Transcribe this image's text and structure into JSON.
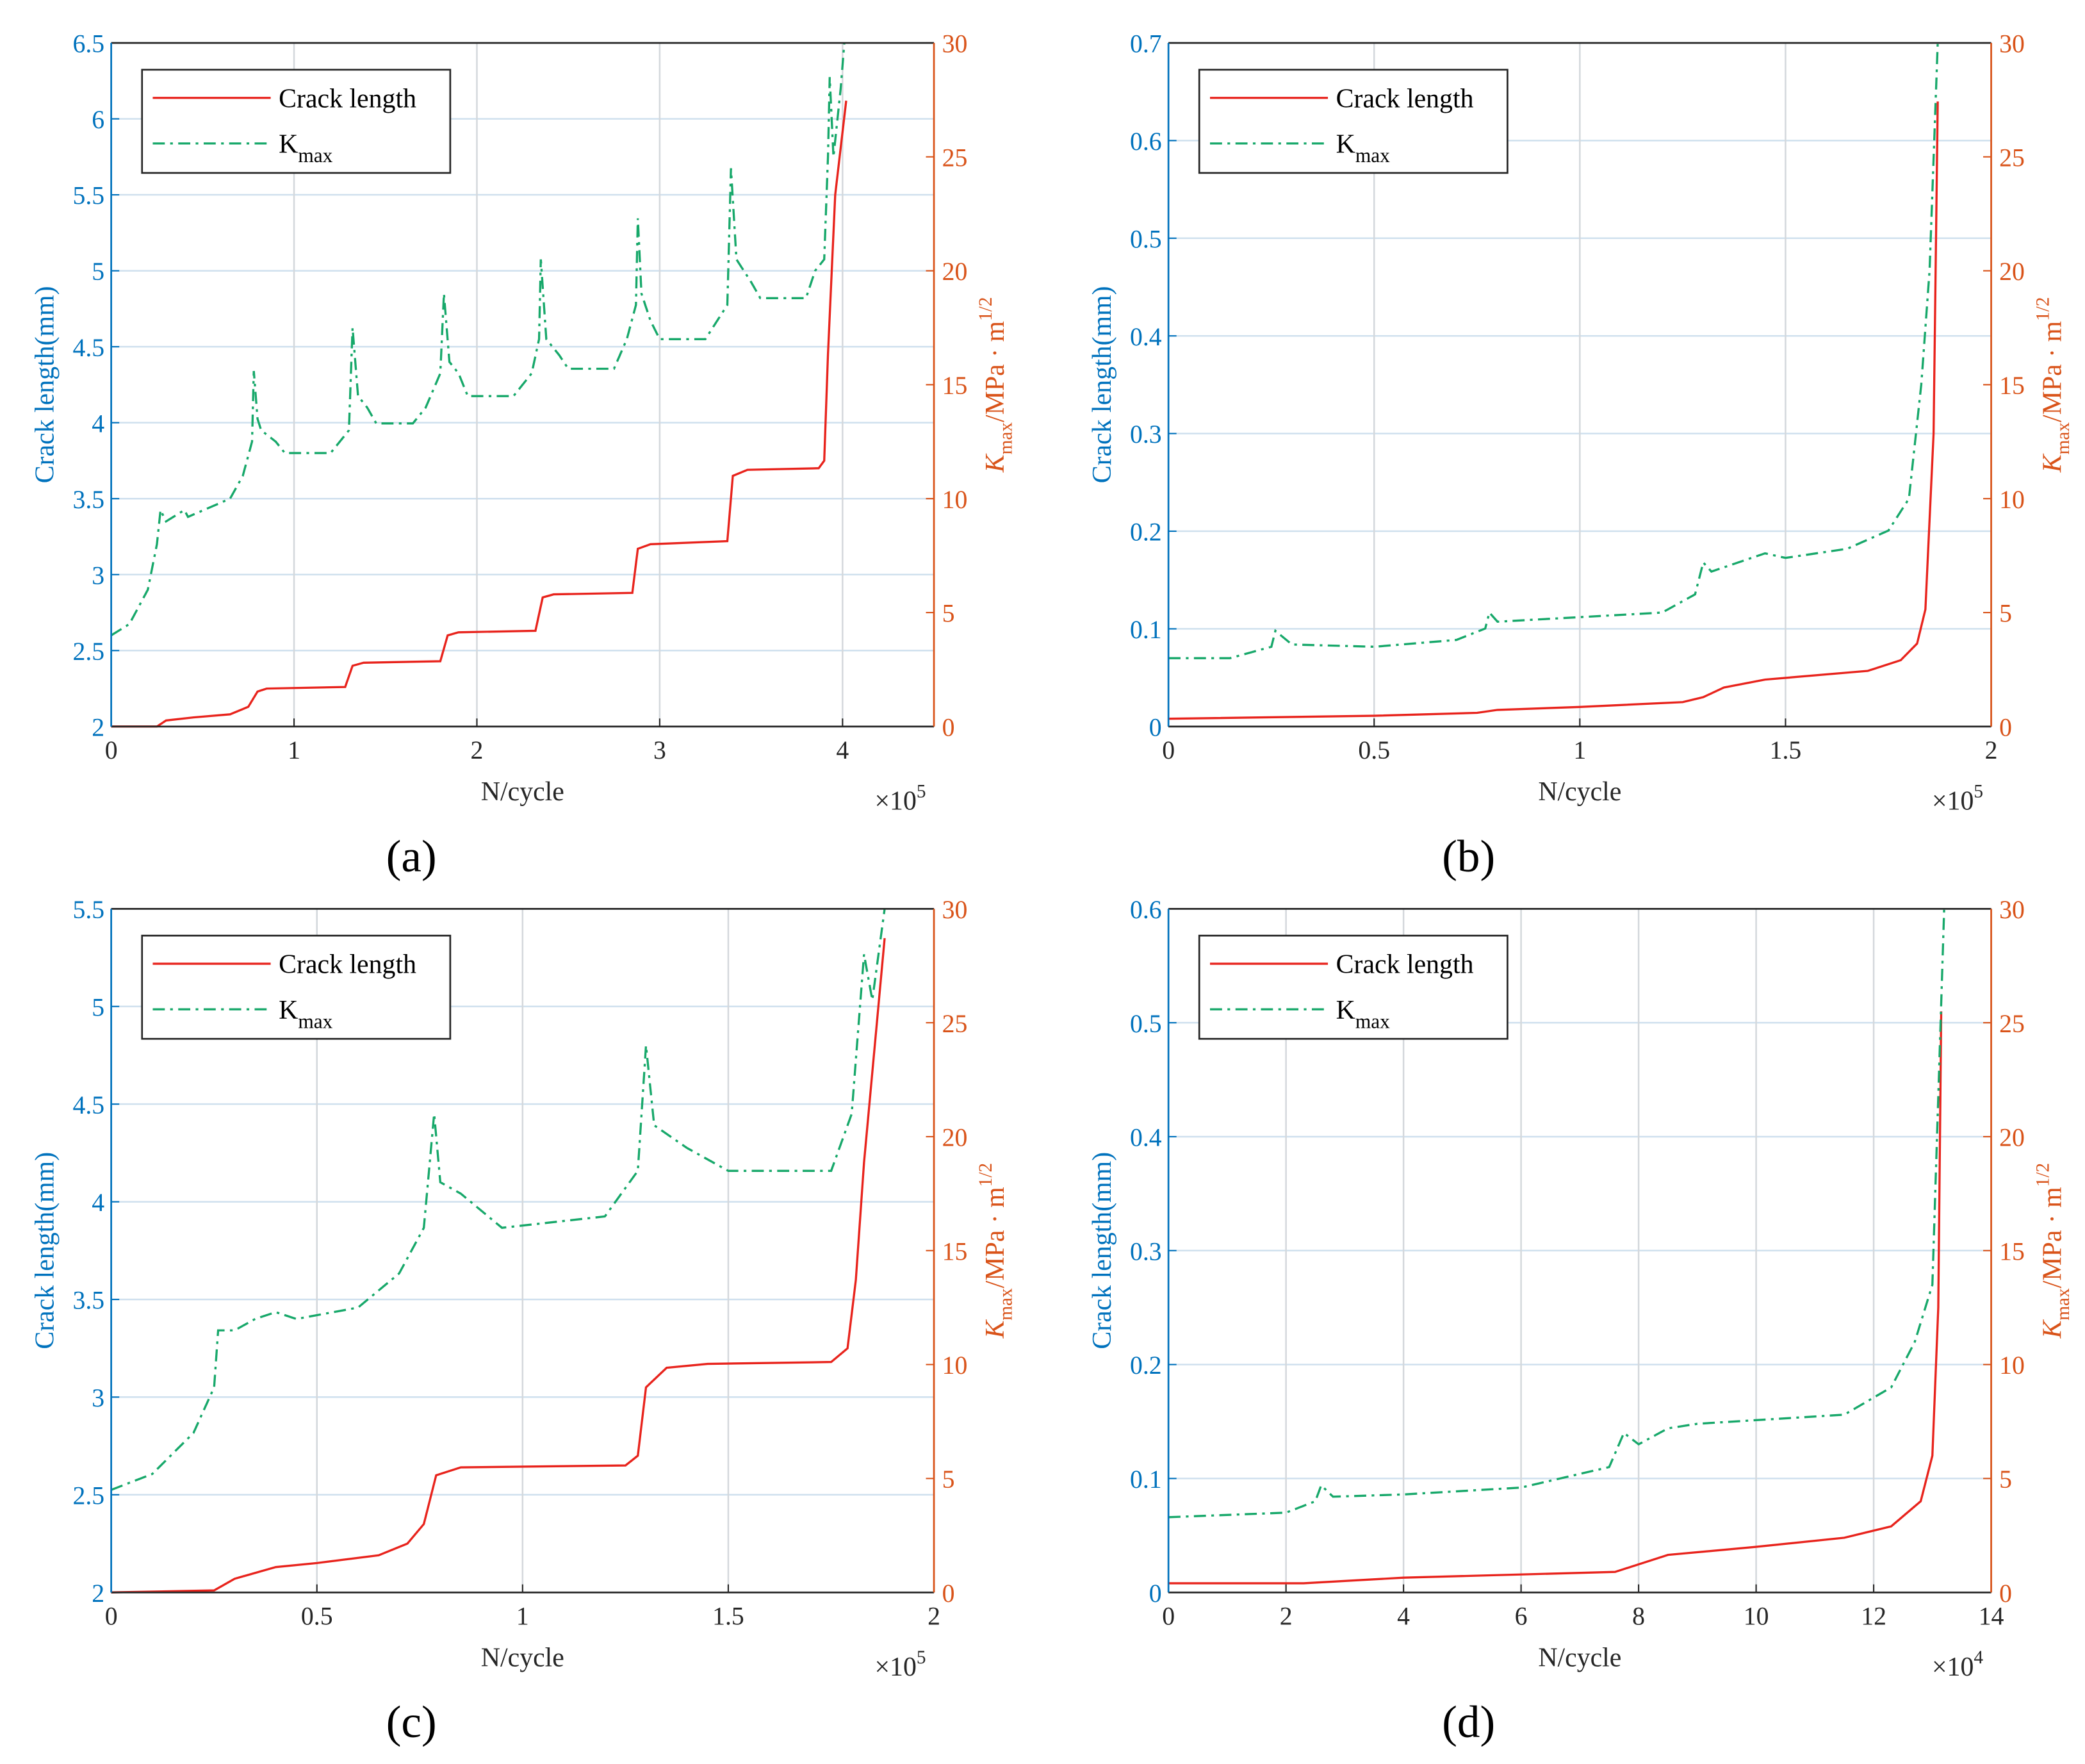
{
  "colors": {
    "left_axis": "#0072BD",
    "right_axis": "#D95319",
    "crack": "#E8231C",
    "kmax": "#17A86A",
    "grid_h": "#CFE0EE",
    "grid_v": "#D4D8DC"
  },
  "chart_data": [
    {
      "panel_label": "(a)",
      "type": "line",
      "xlabel": "N/cycle",
      "x_multiplier": {
        "base": "×10",
        "exp": "5"
      },
      "ylabel_left": "Crack length(mm)",
      "ylabel_right": {
        "k": "K",
        "sub": "max",
        "rest": "/MPa · m",
        "sup": "1/2"
      },
      "xlim": [
        0,
        4.5
      ],
      "xticks": [
        "0",
        "1",
        "2",
        "3",
        "4"
      ],
      "ylim_left": [
        2,
        6.5
      ],
      "yticks_left": [
        "2",
        "2.5",
        "3",
        "3.5",
        "4",
        "4.5",
        "5",
        "5.5",
        "6",
        "6.5"
      ],
      "ylim_right": [
        0,
        30
      ],
      "yticks_right": [
        "0",
        "5",
        "10",
        "15",
        "20",
        "25",
        "30"
      ],
      "grid": true,
      "legend_placement": "top-left",
      "legend": [
        {
          "name": "Crack length"
        },
        {
          "name": "K",
          "sub": "max"
        }
      ],
      "series": [
        {
          "name": "Crack length",
          "axis": "left",
          "style": "solid",
          "points": [
            [
              0,
              2
            ],
            [
              0.25,
              2.0
            ],
            [
              0.3,
              2.04
            ],
            [
              0.45,
              2.06
            ],
            [
              0.65,
              2.08
            ],
            [
              0.75,
              2.13
            ],
            [
              0.8,
              2.23
            ],
            [
              0.85,
              2.25
            ],
            [
              1.28,
              2.26
            ],
            [
              1.32,
              2.4
            ],
            [
              1.38,
              2.42
            ],
            [
              1.8,
              2.43
            ],
            [
              1.84,
              2.6
            ],
            [
              1.9,
              2.62
            ],
            [
              2.32,
              2.63
            ],
            [
              2.36,
              2.85
            ],
            [
              2.42,
              2.87
            ],
            [
              2.85,
              2.88
            ],
            [
              2.88,
              3.17
            ],
            [
              2.95,
              3.2
            ],
            [
              3.37,
              3.22
            ],
            [
              3.4,
              3.65
            ],
            [
              3.48,
              3.69
            ],
            [
              3.87,
              3.7
            ],
            [
              3.9,
              3.75
            ],
            [
              3.92,
              4.45
            ],
            [
              3.96,
              5.5
            ],
            [
              4.02,
              6.12
            ]
          ]
        },
        {
          "name": "Kmax",
          "axis": "right",
          "style": "dashdot",
          "points": [
            [
              0,
              4
            ],
            [
              0.1,
              4.5
            ],
            [
              0.2,
              6
            ],
            [
              0.25,
              8
            ],
            [
              0.27,
              9.5
            ],
            [
              0.3,
              9
            ],
            [
              0.4,
              9.5
            ],
            [
              0.42,
              9.2
            ],
            [
              0.65,
              10
            ],
            [
              0.72,
              11
            ],
            [
              0.77,
              12.5
            ],
            [
              0.78,
              15.6
            ],
            [
              0.8,
              13.5
            ],
            [
              0.82,
              13
            ],
            [
              0.9,
              12.5
            ],
            [
              0.95,
              12
            ],
            [
              1.2,
              12
            ],
            [
              1.3,
              13
            ],
            [
              1.32,
              17.5
            ],
            [
              1.35,
              14.5
            ],
            [
              1.4,
              14
            ],
            [
              1.45,
              13.3
            ],
            [
              1.65,
              13.3
            ],
            [
              1.72,
              14
            ],
            [
              1.8,
              15.5
            ],
            [
              1.82,
              19
            ],
            [
              1.85,
              16
            ],
            [
              1.9,
              15.5
            ],
            [
              1.95,
              14.5
            ],
            [
              2.2,
              14.5
            ],
            [
              2.3,
              15.5
            ],
            [
              2.34,
              17
            ],
            [
              2.35,
              20.5
            ],
            [
              2.38,
              17
            ],
            [
              2.45,
              16.3
            ],
            [
              2.5,
              15.7
            ],
            [
              2.75,
              15.7
            ],
            [
              2.82,
              17
            ],
            [
              2.87,
              18.5
            ],
            [
              2.88,
              22.3
            ],
            [
              2.9,
              19
            ],
            [
              2.95,
              17.8
            ],
            [
              3.0,
              17
            ],
            [
              3.25,
              17
            ],
            [
              3.37,
              18.5
            ],
            [
              3.39,
              24.5
            ],
            [
              3.42,
              20.5
            ],
            [
              3.5,
              19.5
            ],
            [
              3.55,
              18.8
            ],
            [
              3.8,
              18.8
            ],
            [
              3.85,
              20
            ],
            [
              3.9,
              20.5
            ],
            [
              3.92,
              25
            ],
            [
              3.93,
              28.5
            ],
            [
              3.95,
              25
            ],
            [
              3.99,
              28
            ],
            [
              4.01,
              30
            ]
          ]
        }
      ]
    },
    {
      "panel_label": "(b)",
      "type": "line",
      "xlabel": "N/cycle",
      "x_multiplier": {
        "base": "×10",
        "exp": "5"
      },
      "ylabel_left": "Crack length(mm)",
      "ylabel_right": {
        "k": "K",
        "sub": "max",
        "rest": "/MPa · m",
        "sup": "1/2"
      },
      "xlim": [
        0,
        2
      ],
      "xticks": [
        "0",
        "0.5",
        "1",
        "1.5",
        "2"
      ],
      "ylim_left": [
        0,
        0.7
      ],
      "yticks_left": [
        "0",
        "0.1",
        "0.2",
        "0.3",
        "0.4",
        "0.5",
        "0.6",
        "0.7"
      ],
      "ylim_right": [
        0,
        30
      ],
      "yticks_right": [
        "0",
        "5",
        "10",
        "15",
        "20",
        "25",
        "30"
      ],
      "grid": true,
      "legend_placement": "top-left",
      "legend": [
        {
          "name": "Crack length"
        },
        {
          "name": "K",
          "sub": "max"
        }
      ],
      "series": [
        {
          "name": "Crack length",
          "axis": "left",
          "style": "solid",
          "points": [
            [
              0,
              0.008
            ],
            [
              0.5,
              0.011
            ],
            [
              0.75,
              0.014
            ],
            [
              0.8,
              0.017
            ],
            [
              1.0,
              0.02
            ],
            [
              1.25,
              0.025
            ],
            [
              1.3,
              0.03
            ],
            [
              1.35,
              0.04
            ],
            [
              1.45,
              0.048
            ],
            [
              1.7,
              0.057
            ],
            [
              1.78,
              0.068
            ],
            [
              1.82,
              0.085
            ],
            [
              1.84,
              0.12
            ],
            [
              1.86,
              0.3
            ],
            [
              1.87,
              0.64
            ]
          ]
        },
        {
          "name": "Kmax",
          "axis": "right",
          "style": "dashdot",
          "points": [
            [
              0,
              3
            ],
            [
              0.15,
              3
            ],
            [
              0.25,
              3.5
            ],
            [
              0.26,
              4.2
            ],
            [
              0.3,
              3.6
            ],
            [
              0.5,
              3.5
            ],
            [
              0.7,
              3.8
            ],
            [
              0.77,
              4.3
            ],
            [
              0.78,
              5
            ],
            [
              0.8,
              4.6
            ],
            [
              1.0,
              4.8
            ],
            [
              1.2,
              5
            ],
            [
              1.28,
              5.8
            ],
            [
              1.3,
              7.2
            ],
            [
              1.32,
              6.8
            ],
            [
              1.45,
              7.6
            ],
            [
              1.5,
              7.4
            ],
            [
              1.65,
              7.8
            ],
            [
              1.75,
              8.6
            ],
            [
              1.8,
              10
            ],
            [
              1.83,
              15
            ],
            [
              1.85,
              20
            ],
            [
              1.87,
              30
            ]
          ]
        }
      ]
    },
    {
      "panel_label": "(c)",
      "type": "line",
      "xlabel": "N/cycle",
      "x_multiplier": {
        "base": "×10",
        "exp": "5"
      },
      "ylabel_left": "Crack length(mm)",
      "ylabel_right": {
        "k": "K",
        "sub": "max",
        "rest": "/MPa · m",
        "sup": "1/2"
      },
      "xlim": [
        0,
        2
      ],
      "xticks": [
        "0",
        "0.5",
        "1",
        "1.5",
        "2"
      ],
      "ylim_left": [
        2,
        5.5
      ],
      "yticks_left": [
        "2",
        "2.5",
        "3",
        "3.5",
        "4",
        "4.5",
        "5",
        "5.5"
      ],
      "ylim_right": [
        0,
        30
      ],
      "yticks_right": [
        "0",
        "5",
        "10",
        "15",
        "20",
        "25",
        "30"
      ],
      "grid": true,
      "legend_placement": "top-left",
      "legend": [
        {
          "name": "Crack length"
        },
        {
          "name": "K",
          "sub": "max"
        }
      ],
      "series": [
        {
          "name": "Crack length",
          "axis": "left",
          "style": "solid",
          "points": [
            [
              0,
              2
            ],
            [
              0.25,
              2.01
            ],
            [
              0.3,
              2.07
            ],
            [
              0.4,
              2.13
            ],
            [
              0.5,
              2.15
            ],
            [
              0.65,
              2.19
            ],
            [
              0.72,
              2.25
            ],
            [
              0.76,
              2.35
            ],
            [
              0.79,
              2.6
            ],
            [
              0.85,
              2.64
            ],
            [
              1.25,
              2.65
            ],
            [
              1.28,
              2.7
            ],
            [
              1.3,
              3.05
            ],
            [
              1.35,
              3.15
            ],
            [
              1.45,
              3.17
            ],
            [
              1.75,
              3.18
            ],
            [
              1.79,
              3.25
            ],
            [
              1.81,
              3.6
            ],
            [
              1.83,
              4.2
            ],
            [
              1.88,
              5.35
            ]
          ]
        },
        {
          "name": "Kmax",
          "axis": "right",
          "style": "dashdot",
          "points": [
            [
              0,
              4.5
            ],
            [
              0.1,
              5.2
            ],
            [
              0.2,
              7
            ],
            [
              0.25,
              9
            ],
            [
              0.26,
              11.5
            ],
            [
              0.3,
              11.5
            ],
            [
              0.35,
              12
            ],
            [
              0.4,
              12.3
            ],
            [
              0.45,
              12
            ],
            [
              0.6,
              12.5
            ],
            [
              0.7,
              14
            ],
            [
              0.76,
              16
            ],
            [
              0.785,
              21
            ],
            [
              0.8,
              18
            ],
            [
              0.85,
              17.5
            ],
            [
              0.95,
              16
            ],
            [
              1.2,
              16.5
            ],
            [
              1.28,
              18.5
            ],
            [
              1.3,
              24
            ],
            [
              1.32,
              20.5
            ],
            [
              1.4,
              19.5
            ],
            [
              1.5,
              18.5
            ],
            [
              1.75,
              18.5
            ],
            [
              1.8,
              21
            ],
            [
              1.83,
              28
            ],
            [
              1.85,
              26
            ],
            [
              1.88,
              30
            ]
          ]
        }
      ]
    },
    {
      "panel_label": "(d)",
      "type": "line",
      "xlabel": "N/cycle",
      "x_multiplier": {
        "base": "×10",
        "exp": "4"
      },
      "ylabel_left": "Crack length(mm)",
      "ylabel_right": {
        "k": "K",
        "sub": "max",
        "rest": "/MPa · m",
        "sup": "1/2"
      },
      "xlim": [
        0,
        14
      ],
      "xticks": [
        "0",
        "2",
        "4",
        "6",
        "8",
        "10",
        "12",
        "14"
      ],
      "ylim_left": [
        0,
        0.6
      ],
      "yticks_left": [
        "0",
        "0.1",
        "0.2",
        "0.3",
        "0.4",
        "0.5",
        "0.6"
      ],
      "ylim_right": [
        0,
        30
      ],
      "yticks_right": [
        "0",
        "5",
        "10",
        "15",
        "20",
        "25",
        "30"
      ],
      "grid": true,
      "legend_placement": "top-left",
      "legend": [
        {
          "name": "Crack length"
        },
        {
          "name": "K",
          "sub": "max"
        }
      ],
      "series": [
        {
          "name": "Crack length",
          "axis": "left",
          "style": "solid",
          "points": [
            [
              0,
              0.008
            ],
            [
              2.3,
              0.008
            ],
            [
              4,
              0.013
            ],
            [
              7.6,
              0.018
            ],
            [
              8.5,
              0.033
            ],
            [
              10,
              0.04
            ],
            [
              11.5,
              0.048
            ],
            [
              12.3,
              0.058
            ],
            [
              12.8,
              0.08
            ],
            [
              13,
              0.12
            ],
            [
              13.1,
              0.25
            ],
            [
              13.15,
              0.51
            ]
          ]
        },
        {
          "name": "Kmax",
          "axis": "right",
          "style": "dashdot",
          "points": [
            [
              0,
              3.3
            ],
            [
              2,
              3.5
            ],
            [
              2.5,
              4
            ],
            [
              2.6,
              4.7
            ],
            [
              2.8,
              4.2
            ],
            [
              4,
              4.3
            ],
            [
              6,
              4.6
            ],
            [
              7.5,
              5.5
            ],
            [
              7.75,
              7
            ],
            [
              8,
              6.5
            ],
            [
              8.5,
              7.2
            ],
            [
              9,
              7.4
            ],
            [
              11.5,
              7.8
            ],
            [
              12.3,
              9
            ],
            [
              12.7,
              11
            ],
            [
              13,
              13.5
            ],
            [
              13.2,
              30
            ]
          ]
        }
      ]
    }
  ]
}
